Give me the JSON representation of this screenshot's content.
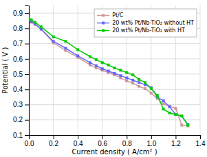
{
  "chart_data": {
    "type": "line",
    "xlabel": "Current density ( A/cm² )",
    "ylabel": "Potential ( V )",
    "x": [
      0.0,
      0.02,
      0.05,
      0.1,
      0.2,
      0.3,
      0.4,
      0.5,
      0.55,
      0.6,
      0.65,
      0.7,
      0.75,
      0.8,
      0.85,
      0.9,
      0.95,
      1.0,
      1.05,
      1.1,
      1.15,
      1.2,
      1.25,
      1.3
    ],
    "series": [
      {
        "name": "Pt/C",
        "color": "#cc9999",
        "marker": "square",
        "values": [
          0.855,
          0.84,
          0.825,
          0.795,
          0.705,
          0.655,
          0.61,
          0.56,
          0.54,
          0.525,
          0.51,
          0.495,
          0.475,
          0.455,
          0.44,
          0.42,
          0.405,
          0.375,
          0.34,
          0.305,
          0.29,
          0.275,
          0.165,
          0.16
        ]
      },
      {
        "name": "20 wt% Pt/Nb-TiO₂ without HT",
        "color": "#6666ff",
        "marker": "square",
        "values": [
          0.86,
          0.845,
          0.83,
          0.795,
          0.715,
          0.67,
          0.62,
          0.575,
          0.555,
          0.535,
          0.52,
          0.505,
          0.49,
          0.475,
          0.46,
          0.445,
          0.43,
          0.41,
          0.35,
          0.325,
          0.285,
          0.235,
          0.225,
          0.17
        ]
      },
      {
        "name": "20 wt% Pt/Nb-TiO₂ with HT",
        "color": "#00cc00",
        "marker": "square",
        "values": [
          0.875,
          0.855,
          0.84,
          0.81,
          0.745,
          0.715,
          0.66,
          0.615,
          0.595,
          0.575,
          0.56,
          0.54,
          0.525,
          0.51,
          0.495,
          0.465,
          0.445,
          0.405,
          0.36,
          0.27,
          0.245,
          0.235,
          0.225,
          0.165
        ]
      }
    ],
    "xlim": [
      0,
      1.4
    ],
    "ylim": [
      0.1,
      0.95
    ],
    "xticks": [
      {
        "value": 0.0,
        "label": "0.0"
      },
      0.2,
      0.4,
      0.6,
      0.8,
      {
        "value": 1.0,
        "label": "1.0"
      },
      1.2,
      1.4
    ],
    "yticks": [
      0.1,
      0.2,
      0.3,
      0.4,
      0.5,
      0.6,
      0.7,
      0.8,
      0.9
    ],
    "grid": true,
    "legend": "upper right"
  }
}
